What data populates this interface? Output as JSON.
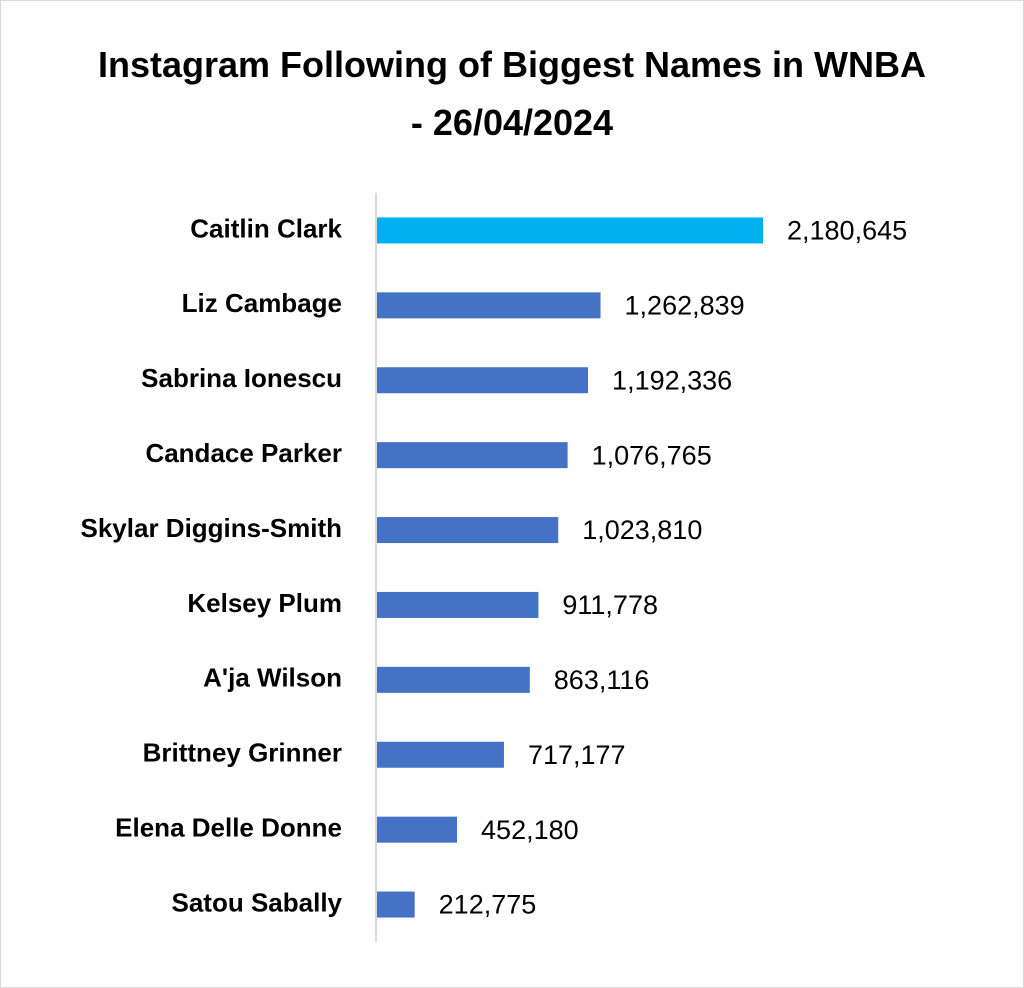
{
  "chart_data": {
    "type": "bar",
    "orientation": "horizontal",
    "title": "Instagram Following of Biggest Names in WNBA - 26/04/2024",
    "categories": [
      "Caitlin Clark",
      "Liz Cambage",
      "Sabrina Ionescu",
      "Candace Parker",
      "Skylar Diggins-Smith",
      "Kelsey Plum",
      "A'ja Wilson",
      "Brittney Grinner",
      "Elena Delle Donne",
      "Satou Sabally"
    ],
    "values": [
      2180645,
      1262839,
      1192336,
      1076765,
      1023810,
      911778,
      863116,
      717177,
      452180,
      212775
    ],
    "value_labels": [
      "2,180,645",
      "1,262,839",
      "1,192,336",
      "1,076,765",
      "1,023,810",
      "911,778",
      "863,116",
      "717,177",
      "452,180",
      "212,775"
    ],
    "colors": [
      "#00b0f0",
      "#4472c4",
      "#4472c4",
      "#4472c4",
      "#4472c4",
      "#4472c4",
      "#4472c4",
      "#4472c4",
      "#4472c4",
      "#4472c4"
    ]
  }
}
